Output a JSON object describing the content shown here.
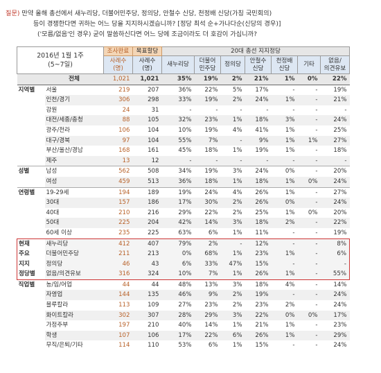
{
  "question": {
    "label": "질문)",
    "line1": "만약 올해 총선에서 새누리당, 더불어민주당, 정의당, 안철수 신당, 천정배 신당(가칭 국민회의)",
    "line2": "등이 경쟁한다면 귀하는 어느 당을 지지하시겠습니까? [정당 최석 순+가나다순(신당의 경우)]",
    "line3": "('모름/없음'인 경우) 굳이 말씀하신다면 어느 당에 조금이라도 더 호감이 가십니까?"
  },
  "header": {
    "period": "2016년 1월 1주",
    "period_sub": "(5~7일)",
    "sample_done": "조사완료",
    "sample_target": "목표할당",
    "sample_done_sub": "사례수",
    "sample_done_unit": "(명)",
    "sample_target_sub": "사례수",
    "sample_target_unit": "(명)",
    "group_title": "20대 총선 지지정당",
    "parties": [
      "새누리당",
      "더불어|민주당",
      "정의당",
      "안철수|신당",
      "천정배|신당",
      "기타",
      "없음/|의견유보"
    ]
  },
  "total": {
    "label": "전체",
    "n1": "1,021",
    "n2": "1,021",
    "v": [
      "35%",
      "19%",
      "2%",
      "21%",
      "1%",
      "0%",
      "22%"
    ]
  },
  "groups": [
    {
      "name": "지역별",
      "rows": [
        {
          "label": "서울",
          "n1": "219",
          "n2": "207",
          "v": [
            "36%",
            "22%",
            "5%",
            "17%",
            "-",
            "-",
            "19%"
          ]
        },
        {
          "label": "인천/경기",
          "n1": "306",
          "n2": "298",
          "v": [
            "33%",
            "19%",
            "2%",
            "24%",
            "1%",
            "-",
            "21%"
          ]
        },
        {
          "label": "강원",
          "n1": "24",
          "n2": "31",
          "v": [
            "-",
            "-",
            "-",
            "-",
            "-",
            "-",
            "-"
          ]
        },
        {
          "label": "대전/세종/충청",
          "n1": "88",
          "n2": "105",
          "v": [
            "32%",
            "23%",
            "1%",
            "18%",
            "3%",
            "-",
            "24%"
          ]
        },
        {
          "label": "광주/전라",
          "n1": "106",
          "n2": "104",
          "v": [
            "10%",
            "19%",
            "4%",
            "41%",
            "1%",
            "-",
            "25%"
          ]
        },
        {
          "label": "대구/경북",
          "n1": "97",
          "n2": "104",
          "v": [
            "55%",
            "7%",
            "-",
            "9%",
            "1%",
            "1%",
            "27%"
          ]
        },
        {
          "label": "부산/울산/경남",
          "n1": "168",
          "n2": "161",
          "v": [
            "45%",
            "18%",
            "1%",
            "19%",
            "1%",
            "-",
            "18%"
          ]
        },
        {
          "label": "제주",
          "n1": "13",
          "n2": "12",
          "v": [
            "-",
            "-",
            "-",
            "-",
            "-",
            "-",
            "-"
          ]
        }
      ]
    },
    {
      "name": "성별",
      "rows": [
        {
          "label": "남성",
          "n1": "562",
          "n2": "508",
          "v": [
            "34%",
            "19%",
            "3%",
            "24%",
            "0%",
            "-",
            "20%"
          ]
        },
        {
          "label": "여성",
          "n1": "459",
          "n2": "513",
          "v": [
            "36%",
            "18%",
            "1%",
            "18%",
            "1%",
            "0%",
            "24%"
          ]
        }
      ]
    },
    {
      "name": "연령별",
      "rows": [
        {
          "label": "19-29세",
          "n1": "194",
          "n2": "189",
          "v": [
            "19%",
            "24%",
            "4%",
            "26%",
            "1%",
            "-",
            "27%"
          ]
        },
        {
          "label": "30대",
          "n1": "157",
          "n2": "186",
          "v": [
            "17%",
            "30%",
            "2%",
            "26%",
            "0%",
            "-",
            "24%"
          ]
        },
        {
          "label": "40대",
          "n1": "210",
          "n2": "216",
          "v": [
            "29%",
            "22%",
            "2%",
            "25%",
            "1%",
            "0%",
            "20%"
          ]
        },
        {
          "label": "50대",
          "n1": "225",
          "n2": "204",
          "v": [
            "42%",
            "14%",
            "3%",
            "18%",
            "2%",
            "-",
            "22%"
          ]
        },
        {
          "label": "60세 이상",
          "n1": "235",
          "n2": "225",
          "v": [
            "63%",
            "6%",
            "1%",
            "11%",
            "-",
            "-",
            "19%"
          ]
        }
      ]
    },
    {
      "name": "현재|주요|지지|정당별",
      "rows": [
        {
          "label": "새누리당",
          "n1": "412",
          "n2": "407",
          "v": [
            "79%",
            "2%",
            "-",
            "12%",
            "-",
            "-",
            "8%"
          ]
        },
        {
          "label": "더불어민주당",
          "n1": "211",
          "n2": "213",
          "v": [
            "0%",
            "68%",
            "1%",
            "23%",
            "1%",
            "-",
            "6%"
          ]
        },
        {
          "label": "정의당",
          "n1": "46",
          "n2": "43",
          "v": [
            "6%",
            "33%",
            "47%",
            "15%",
            "-",
            "-",
            "-"
          ]
        },
        {
          "label": "없음/의견유보",
          "n1": "316",
          "n2": "324",
          "v": [
            "10%",
            "7%",
            "1%",
            "26%",
            "1%",
            "-",
            "55%"
          ]
        }
      ]
    },
    {
      "name": "직업별",
      "rows": [
        {
          "label": "농/임/어업",
          "n1": "44",
          "n2": "44",
          "v": [
            "48%",
            "13%",
            "3%",
            "18%",
            "4%",
            "-",
            "14%"
          ]
        },
        {
          "label": "자영업",
          "n1": "144",
          "n2": "135",
          "v": [
            "46%",
            "9%",
            "2%",
            "19%",
            "-",
            "-",
            "24%"
          ]
        },
        {
          "label": "블루칼라",
          "n1": "113",
          "n2": "109",
          "v": [
            "27%",
            "23%",
            "2%",
            "23%",
            "2%",
            "-",
            "24%"
          ]
        },
        {
          "label": "화이트칼라",
          "n1": "302",
          "n2": "307",
          "v": [
            "28%",
            "29%",
            "3%",
            "22%",
            "0%",
            "0%",
            "17%"
          ]
        },
        {
          "label": "가정주부",
          "n1": "197",
          "n2": "210",
          "v": [
            "40%",
            "14%",
            "1%",
            "21%",
            "1%",
            "-",
            "23%"
          ]
        },
        {
          "label": "학생",
          "n1": "107",
          "n2": "106",
          "v": [
            "17%",
            "22%",
            "6%",
            "26%",
            "1%",
            "-",
            "29%"
          ]
        },
        {
          "label": "무직/은퇴/기타",
          "n1": "114",
          "n2": "110",
          "v": [
            "53%",
            "6%",
            "1%",
            "15%",
            "-",
            "-",
            "24%"
          ]
        }
      ]
    }
  ]
}
